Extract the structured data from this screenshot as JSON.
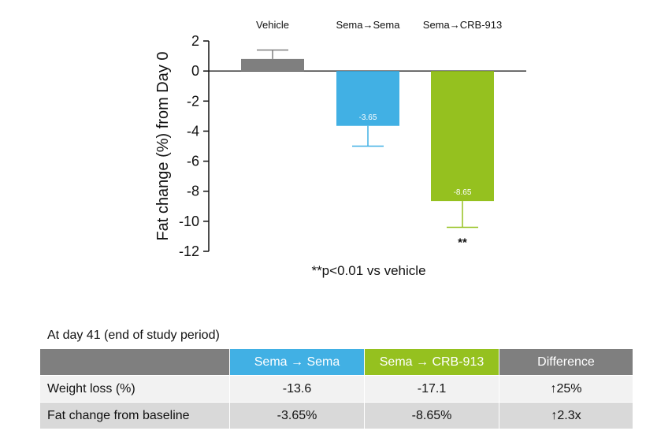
{
  "colors": {
    "vehicle": "#7f7f7f",
    "sema_sema": "#41b0e4",
    "sema_crb": "#95c11f",
    "header_gray": "#7f7f7f",
    "row_light": "#f2f2f2",
    "row_dark": "#d9d9d9"
  },
  "chart_data": {
    "type": "bar",
    "categories": [
      "Vehicle",
      "Sema→Sema",
      "Sema→CRB-913"
    ],
    "values": [
      0.8,
      -3.65,
      -8.65
    ],
    "error_bars": [
      0.6,
      1.35,
      1.75
    ],
    "data_labels": [
      "",
      "-3.65",
      "-8.65"
    ],
    "significance": [
      "",
      "",
      "**"
    ],
    "ylabel": "Fat change (%) from Day 0",
    "ylim": [
      -12,
      2
    ],
    "yticks": [
      2,
      0,
      -2,
      -4,
      -6,
      -8,
      -10,
      -12
    ],
    "footnote": "**p<0.01 vs vehicle"
  },
  "table": {
    "caption": "At day 41 (end of study period)",
    "headers": [
      "",
      "Sema → Sema",
      "Sema → CRB-913",
      "Difference"
    ],
    "rows": [
      [
        "Weight loss (%)",
        "-13.6",
        "-17.1",
        "↑25%"
      ],
      [
        "Fat change from baseline",
        "-3.65%",
        "-8.65%",
        "↑2.3x"
      ]
    ]
  }
}
